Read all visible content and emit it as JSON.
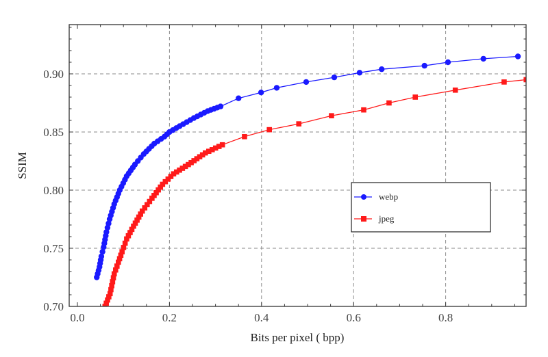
{
  "chart_data": {
    "type": "line",
    "title": "",
    "xlabel": "Bits per pixel ( bpp)",
    "ylabel": "SSIM",
    "xlim": [
      -0.018,
      0.976
    ],
    "ylim": [
      0.7,
      0.942
    ],
    "x_ticks": [
      0.0,
      0.2,
      0.4,
      0.6,
      0.8
    ],
    "x_tick_labels": [
      "0.0",
      "0.2",
      "0.4",
      "0.6",
      "0.8"
    ],
    "y_ticks": [
      0.7,
      0.75,
      0.8,
      0.85,
      0.9
    ],
    "y_tick_labels": [
      "0.70",
      "0.75",
      "0.80",
      "0.85",
      "0.90"
    ],
    "grid": true,
    "grid_style": "dashed",
    "legend_position": "inside-right",
    "series": [
      {
        "name": "webp",
        "color": "#1a1aff",
        "marker": "circle",
        "x": [
          0.042,
          0.048,
          0.052,
          0.057,
          0.063,
          0.07,
          0.08,
          0.092,
          0.107,
          0.125,
          0.144,
          0.167,
          0.189,
          0.2,
          0.222,
          0.253,
          0.283,
          0.311,
          0.35,
          0.399,
          0.433,
          0.497,
          0.558,
          0.613,
          0.661,
          0.754,
          0.805,
          0.882,
          0.957
        ],
        "y": [
          0.725,
          0.734,
          0.743,
          0.751,
          0.764,
          0.775,
          0.788,
          0.8,
          0.812,
          0.822,
          0.831,
          0.84,
          0.846,
          0.85,
          0.855,
          0.862,
          0.868,
          0.872,
          0.879,
          0.884,
          0.888,
          0.893,
          0.897,
          0.901,
          0.904,
          0.907,
          0.91,
          0.913,
          0.915
        ]
      },
      {
        "name": "jpeg",
        "color": "#ff1a1a",
        "marker": "square",
        "x": [
          0.06,
          0.071,
          0.08,
          0.089,
          0.097,
          0.107,
          0.122,
          0.141,
          0.162,
          0.185,
          0.209,
          0.241,
          0.278,
          0.315,
          0.363,
          0.417,
          0.481,
          0.552,
          0.622,
          0.677,
          0.734,
          0.821,
          0.927,
          0.975
        ],
        "y": [
          0.7,
          0.711,
          0.728,
          0.738,
          0.747,
          0.758,
          0.769,
          0.782,
          0.793,
          0.805,
          0.814,
          0.822,
          0.832,
          0.839,
          0.846,
          0.852,
          0.857,
          0.864,
          0.869,
          0.875,
          0.88,
          0.886,
          0.893,
          0.895
        ]
      }
    ]
  }
}
